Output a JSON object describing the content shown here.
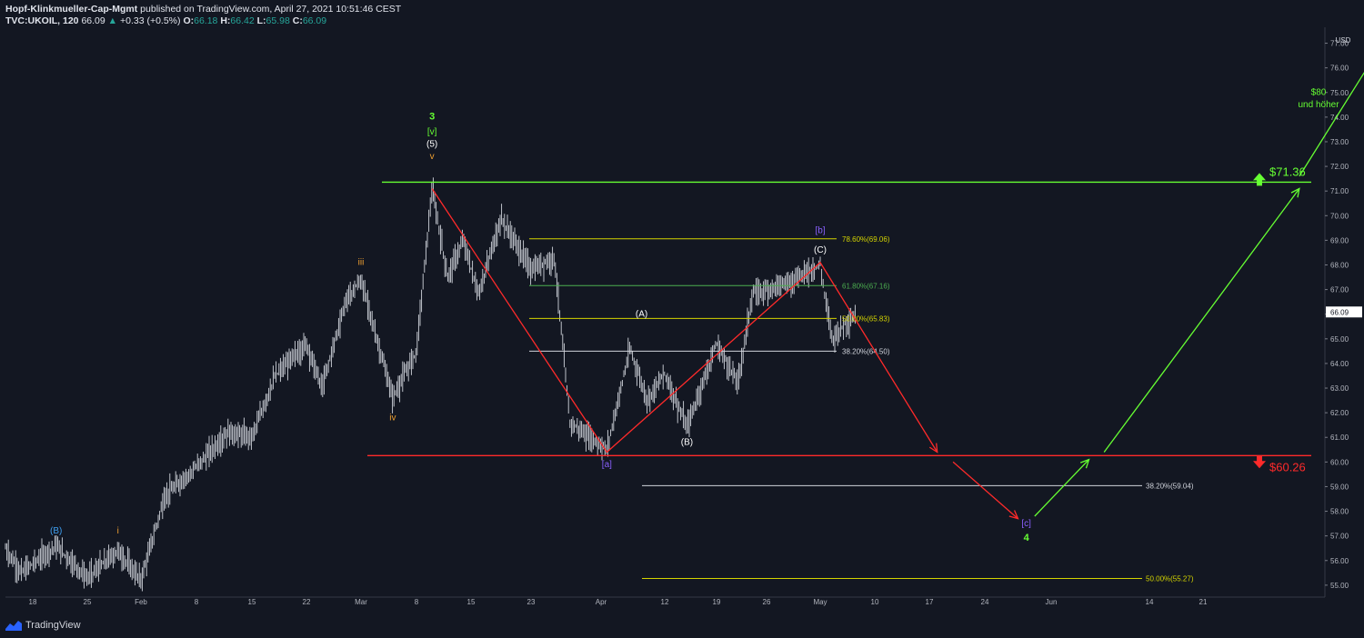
{
  "header": {
    "publisher": "Hopf-Klinkmueller-Cap-Mgmt",
    "published_text": "published on TradingView.com, April 27, 2021 10:51:46 CEST",
    "symbol": "TVC:UKOIL, 120",
    "last": "66.09",
    "change": "+0.33 (+0.5%)",
    "o_label": "O:",
    "o_value": "66.18",
    "h_label": "H:",
    "h_value": "66.42",
    "l_label": "L:",
    "l_value": "65.98",
    "c_label": "C:",
    "c_value": "66.09"
  },
  "footer": {
    "brand": "TradingView"
  },
  "colors": {
    "background": "#131722",
    "price_bars": "#d1d4dc",
    "green": "#66ff33",
    "red": "#ff2a2a",
    "fib_yellow": "#d4d400",
    "fib_green": "#4caf50",
    "fib_white": "#d1d4dc",
    "wave_orange": "#f0a030",
    "wave_purple": "#8a60ff",
    "wave_blue": "#3f9ff0"
  },
  "chart_data": {
    "type": "candlestick",
    "currency": "USD",
    "current_price": "66.09",
    "ylim": [
      54.7,
      77.5
    ],
    "y_ticks": [
      "55.00",
      "56.00",
      "57.00",
      "58.00",
      "59.00",
      "60.00",
      "61.00",
      "62.00",
      "63.00",
      "64.00",
      "65.00",
      "66.00",
      "67.00",
      "68.00",
      "69.00",
      "70.00",
      "71.00",
      "72.00",
      "73.00",
      "74.00",
      "75.00",
      "76.00",
      "77.00"
    ],
    "x_ticks": [
      "18",
      "25",
      "Feb",
      "8",
      "15",
      "22",
      "Mar",
      "8",
      "15",
      "23",
      "Apr",
      "12",
      "19",
      "26",
      "May",
      "10",
      "17",
      "24",
      "Jun",
      "14",
      "21"
    ],
    "price_path": [
      {
        "date": "2021-01-11",
        "price": 56.5
      },
      {
        "date": "2021-01-15",
        "price": 55.5
      },
      {
        "date": "2021-01-21",
        "price": 56.6
      },
      {
        "date": "2021-01-25",
        "price": 55.3
      },
      {
        "date": "2021-01-29",
        "price": 56.4
      },
      {
        "date": "2021-02-01",
        "price": 55.2
      },
      {
        "date": "2021-02-04",
        "price": 58.6
      },
      {
        "date": "2021-02-08",
        "price": 59.8
      },
      {
        "date": "2021-02-12",
        "price": 61.2
      },
      {
        "date": "2021-02-15",
        "price": 61.0
      },
      {
        "date": "2021-02-18",
        "price": 63.5
      },
      {
        "date": "2021-02-22",
        "price": 64.8
      },
      {
        "date": "2021-02-24",
        "price": 63.0
      },
      {
        "date": "2021-02-27",
        "price": 66.5
      },
      {
        "date": "2021-03-01",
        "price": 67.4
      },
      {
        "date": "2021-03-05",
        "price": 62.6
      },
      {
        "date": "2021-03-08",
        "price": 64.5
      },
      {
        "date": "2021-03-10",
        "price": 71.1
      },
      {
        "date": "2021-03-12",
        "price": 67.5
      },
      {
        "date": "2021-03-14",
        "price": 69.0
      },
      {
        "date": "2021-03-16",
        "price": 66.8
      },
      {
        "date": "2021-03-19",
        "price": 69.9
      },
      {
        "date": "2021-03-23",
        "price": 67.8
      },
      {
        "date": "2021-03-26",
        "price": 68.3
      },
      {
        "date": "2021-03-28",
        "price": 61.6
      },
      {
        "date": "2021-04-02",
        "price": 60.5
      },
      {
        "date": "2021-04-06",
        "price": 64.6
      },
      {
        "date": "2021-04-09",
        "price": 62.5
      },
      {
        "date": "2021-04-12",
        "price": 63.6
      },
      {
        "date": "2021-04-15",
        "price": 61.4
      },
      {
        "date": "2021-04-19",
        "price": 64.8
      },
      {
        "date": "2021-04-22",
        "price": 63.2
      },
      {
        "date": "2021-04-24",
        "price": 66.8
      },
      {
        "date": "2021-04-28",
        "price": 67.3
      },
      {
        "date": "2021-05-01",
        "price": 68.0
      },
      {
        "date": "2021-05-02",
        "price": 66.4
      },
      {
        "date": "2021-05-03",
        "price": 65.0
      },
      {
        "date": "2021-05-05",
        "price": 65.6
      },
      {
        "date": "2021-05-07",
        "price": 66.0
      }
    ],
    "horizontal_levels": [
      {
        "name": "resistance",
        "price": 71.36,
        "label": "$71.36",
        "color": "#66ff33",
        "arrow": "up"
      },
      {
        "name": "support",
        "price": 60.26,
        "label": "$60.26",
        "color": "#ff2a2a",
        "arrow": "down"
      }
    ],
    "fib_upper": [
      {
        "label": "78.60%(69.06)",
        "price": 69.06,
        "color": "#d4d400"
      },
      {
        "label": "61.80%(67.16)",
        "price": 67.16,
        "color": "#4caf50"
      },
      {
        "label": "50.00%(65.83)",
        "price": 65.83,
        "color": "#d4d400"
      },
      {
        "label": "38.20%(64.50)",
        "price": 64.5,
        "color": "#d1d4dc"
      }
    ],
    "fib_lower": [
      {
        "label": "38.20%(59.04)",
        "price": 59.04,
        "color": "#d1d4dc"
      },
      {
        "label": "50.00%(55.27)",
        "price": 55.27,
        "color": "#d4d400"
      }
    ],
    "red_path": [
      {
        "date": "2021-03-10",
        "price": 71.1
      },
      {
        "date": "2021-04-02",
        "price": 60.4
      },
      {
        "date": "2021-05-01",
        "price": 68.1
      },
      {
        "date": "2021-05-18",
        "price": 60.4
      }
    ],
    "red_path_tail": [
      {
        "date": "2021-05-20",
        "price": 60.0
      },
      {
        "date": "2021-05-28",
        "price": 57.7
      }
    ],
    "green_path": [
      {
        "date": "2021-05-30",
        "price": 57.8
      },
      {
        "date": "2021-06-06",
        "price": 60.1
      }
    ],
    "green_path_2": [
      {
        "date": "2021-06-08",
        "price": 60.4
      },
      {
        "date": "2021-07-11",
        "price": 71.1
      }
    ],
    "green_path_3": [
      {
        "date": "2021-07-11",
        "price": 71.6
      },
      {
        "date": "2021-07-28",
        "price": 76.9
      }
    ],
    "annotations": [
      {
        "text": "3",
        "date": "2021-03-10",
        "price": 73.9,
        "color": "#66ff33",
        "bold": true
      },
      {
        "text": "[v]",
        "date": "2021-03-10",
        "price": 73.3,
        "color": "#66ff33"
      },
      {
        "text": "(5)",
        "date": "2021-03-10",
        "price": 72.8,
        "color": "#ffffff"
      },
      {
        "text": "v",
        "date": "2021-03-10",
        "price": 72.3,
        "color": "#f0a030"
      },
      {
        "text": "iii",
        "date": "2021-03-01",
        "price": 68.0,
        "color": "#f0a030"
      },
      {
        "text": "iv",
        "date": "2021-03-05",
        "price": 61.7,
        "color": "#f0a030"
      },
      {
        "text": "(B)",
        "date": "2021-01-21",
        "price": 57.1,
        "color": "#3f9ff0"
      },
      {
        "text": "i",
        "date": "2021-01-29",
        "price": 57.1,
        "color": "#f0a030"
      },
      {
        "text": "[a]",
        "date": "2021-04-02",
        "price": 59.8,
        "color": "#8a60ff"
      },
      {
        "text": "(A)",
        "date": "2021-04-08",
        "price": 65.9,
        "color": "#ffffff"
      },
      {
        "text": "(B)",
        "date": "2021-04-15",
        "price": 60.7,
        "color": "#ffffff"
      },
      {
        "text": "[b]",
        "date": "2021-05-01",
        "price": 69.3,
        "color": "#8a60ff"
      },
      {
        "text": "(C)",
        "date": "2021-05-01",
        "price": 68.5,
        "color": "#ffffff"
      },
      {
        "text": "[c]",
        "date": "2021-05-29",
        "price": 57.4,
        "color": "#8a60ff"
      },
      {
        "text": "4",
        "date": "2021-05-29",
        "price": 56.8,
        "color": "#66ff33",
        "bold": true
      },
      {
        "text": "$80",
        "date": "2021-07-15",
        "price": 74.9,
        "color": "#66ff33"
      },
      {
        "text": "und höher",
        "date": "2021-07-15",
        "price": 74.4,
        "color": "#66ff33"
      }
    ]
  }
}
